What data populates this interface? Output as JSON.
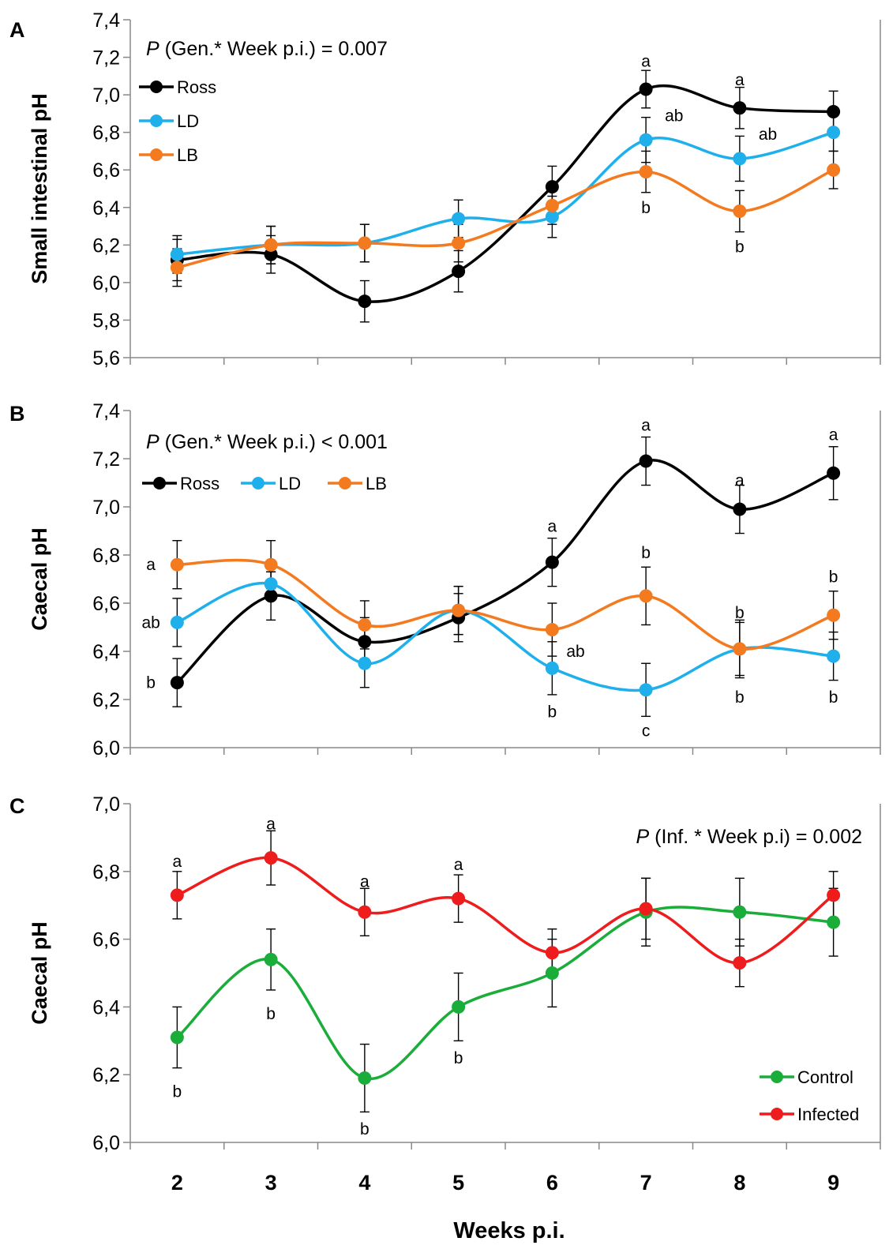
{
  "figure": {
    "xlabel": "Weeks p.i.",
    "colors": {
      "Ross": "#000000",
      "LD": "#1fb0ec",
      "LB": "#f47a20",
      "Control": "#1aad3a",
      "Infected": "#ee1c1c"
    }
  },
  "chart_data": [
    {
      "type": "line",
      "panel": "A",
      "ylabel": "Small intestinal pH",
      "ylim": [
        5.6,
        7.4
      ],
      "yticks": [
        "5,6",
        "5,8",
        "6,0",
        "6,2",
        "6,4",
        "6,6",
        "6,8",
        "7,0",
        "7,2",
        "7,4"
      ],
      "x": [
        2,
        3,
        4,
        5,
        6,
        7,
        8,
        9
      ],
      "xticks": [
        "2",
        "3",
        "4",
        "5",
        "6",
        "7",
        "8",
        "9"
      ],
      "annotation": {
        "italic": "P",
        "text": " (Gen.* Week p.i.) = 0.007"
      },
      "legend_position": "top-left, vertical",
      "series": [
        {
          "name": "Ross",
          "color": "#000000",
          "values": [
            6.12,
            6.15,
            5.9,
            6.06,
            6.51,
            7.03,
            6.93,
            6.91
          ],
          "errors": [
            0.11,
            0.1,
            0.11,
            0.11,
            0.11,
            0.1,
            0.11,
            0.11
          ]
        },
        {
          "name": "LD",
          "color": "#1fb0ec",
          "values": [
            6.15,
            6.2,
            6.21,
            6.34,
            6.35,
            6.76,
            6.66,
            6.8
          ],
          "errors": [
            0.1,
            0.1,
            0.1,
            0.1,
            0.11,
            0.12,
            0.12,
            0.1
          ]
        },
        {
          "name": "LB",
          "color": "#f47a20",
          "values": [
            6.08,
            6.2,
            6.21,
            6.21,
            6.41,
            6.59,
            6.38,
            6.6
          ],
          "errors": [
            0.1,
            0.1,
            0.1,
            0.1,
            0.1,
            0.11,
            0.11,
            0.1
          ]
        }
      ],
      "labels": [
        {
          "x": 7,
          "y": 7.18,
          "text": "a"
        },
        {
          "x": 7.3,
          "y": 6.89,
          "text": "ab"
        },
        {
          "x": 7,
          "y": 6.4,
          "text": "b"
        },
        {
          "x": 8,
          "y": 7.08,
          "text": "a"
        },
        {
          "x": 8.3,
          "y": 6.79,
          "text": "ab"
        },
        {
          "x": 8,
          "y": 6.19,
          "text": "b"
        }
      ]
    },
    {
      "type": "line",
      "panel": "B",
      "ylabel": "Caecal pH",
      "ylim": [
        6.0,
        7.4
      ],
      "yticks": [
        "6,0",
        "6,2",
        "6,4",
        "6,6",
        "6,8",
        "7,0",
        "7,2",
        "7,4"
      ],
      "x": [
        2,
        3,
        4,
        5,
        6,
        7,
        8,
        9
      ],
      "xticks": [
        "2",
        "3",
        "4",
        "5",
        "6",
        "7",
        "8",
        "9"
      ],
      "annotation": {
        "italic": "P",
        "text": " (Gen.* Week p.i.) < 0.001"
      },
      "legend_position": "top-left, horizontal",
      "series": [
        {
          "name": "Ross",
          "color": "#000000",
          "values": [
            6.27,
            6.63,
            6.44,
            6.54,
            6.77,
            7.19,
            6.99,
            7.14
          ],
          "errors": [
            0.1,
            0.1,
            0.1,
            0.1,
            0.1,
            0.1,
            0.1,
            0.11
          ]
        },
        {
          "name": "LD",
          "color": "#1fb0ec",
          "values": [
            6.52,
            6.68,
            6.35,
            6.57,
            6.33,
            6.24,
            6.41,
            6.38
          ],
          "errors": [
            0.1,
            0.05,
            0.1,
            0.1,
            0.11,
            0.11,
            0.11,
            0.1
          ]
        },
        {
          "name": "LB",
          "color": "#f47a20",
          "values": [
            6.76,
            6.76,
            6.51,
            6.57,
            6.49,
            6.63,
            6.41,
            6.55
          ],
          "errors": [
            0.1,
            0.1,
            0.1,
            0.1,
            0.11,
            0.12,
            0.12,
            0.1
          ]
        }
      ],
      "labels": [
        {
          "x": 1.72,
          "y": 6.76,
          "text": "a"
        },
        {
          "x": 1.72,
          "y": 6.52,
          "text": "ab"
        },
        {
          "x": 1.72,
          "y": 6.27,
          "text": "b"
        },
        {
          "x": 6,
          "y": 6.92,
          "text": "a"
        },
        {
          "x": 6.25,
          "y": 6.4,
          "text": "ab"
        },
        {
          "x": 6,
          "y": 6.15,
          "text": "b"
        },
        {
          "x": 7,
          "y": 7.34,
          "text": "a"
        },
        {
          "x": 7,
          "y": 6.81,
          "text": "b"
        },
        {
          "x": 7,
          "y": 6.07,
          "text": "c"
        },
        {
          "x": 8,
          "y": 7.11,
          "text": "a"
        },
        {
          "x": 8,
          "y": 6.56,
          "text": "b"
        },
        {
          "x": 8,
          "y": 6.21,
          "text": "b"
        },
        {
          "x": 9,
          "y": 7.3,
          "text": "a"
        },
        {
          "x": 9,
          "y": 6.71,
          "text": "b"
        },
        {
          "x": 9,
          "y": 6.21,
          "text": "b"
        }
      ]
    },
    {
      "type": "line",
      "panel": "C",
      "ylabel": "Caecal pH",
      "ylim": [
        6.0,
        7.0
      ],
      "yticks": [
        "6,0",
        "6,2",
        "6,4",
        "6,6",
        "6,8",
        "7,0"
      ],
      "x": [
        2,
        3,
        4,
        5,
        6,
        7,
        8,
        9
      ],
      "xticks": [
        "2",
        "3",
        "4",
        "5",
        "6",
        "7",
        "8",
        "9"
      ],
      "annotation": {
        "italic": "P",
        "text": " (Inf. * Week p.i) = 0.002"
      },
      "legend_position": "bottom-right, vertical",
      "series": [
        {
          "name": "Control",
          "color": "#1aad3a",
          "values": [
            6.31,
            6.54,
            6.19,
            6.4,
            6.5,
            6.68,
            6.68,
            6.65
          ],
          "errors": [
            0.09,
            0.09,
            0.1,
            0.1,
            0.1,
            0.1,
            0.1,
            0.1
          ]
        },
        {
          "name": "Infected",
          "color": "#ee1c1c",
          "values": [
            6.73,
            6.84,
            6.68,
            6.72,
            6.56,
            6.69,
            6.53,
            6.73
          ],
          "errors": [
            0.07,
            0.08,
            0.07,
            0.07,
            0.07,
            0.09,
            0.07,
            0.07
          ]
        }
      ],
      "labels": [
        {
          "x": 2,
          "y": 6.83,
          "text": "a"
        },
        {
          "x": 3,
          "y": 6.94,
          "text": "a"
        },
        {
          "x": 4,
          "y": 6.77,
          "text": "a"
        },
        {
          "x": 5,
          "y": 6.82,
          "text": "a"
        },
        {
          "x": 2,
          "y": 6.15,
          "text": "b"
        },
        {
          "x": 3,
          "y": 6.38,
          "text": "b"
        },
        {
          "x": 4,
          "y": 6.04,
          "text": "b"
        },
        {
          "x": 5,
          "y": 6.25,
          "text": "b"
        }
      ]
    }
  ]
}
